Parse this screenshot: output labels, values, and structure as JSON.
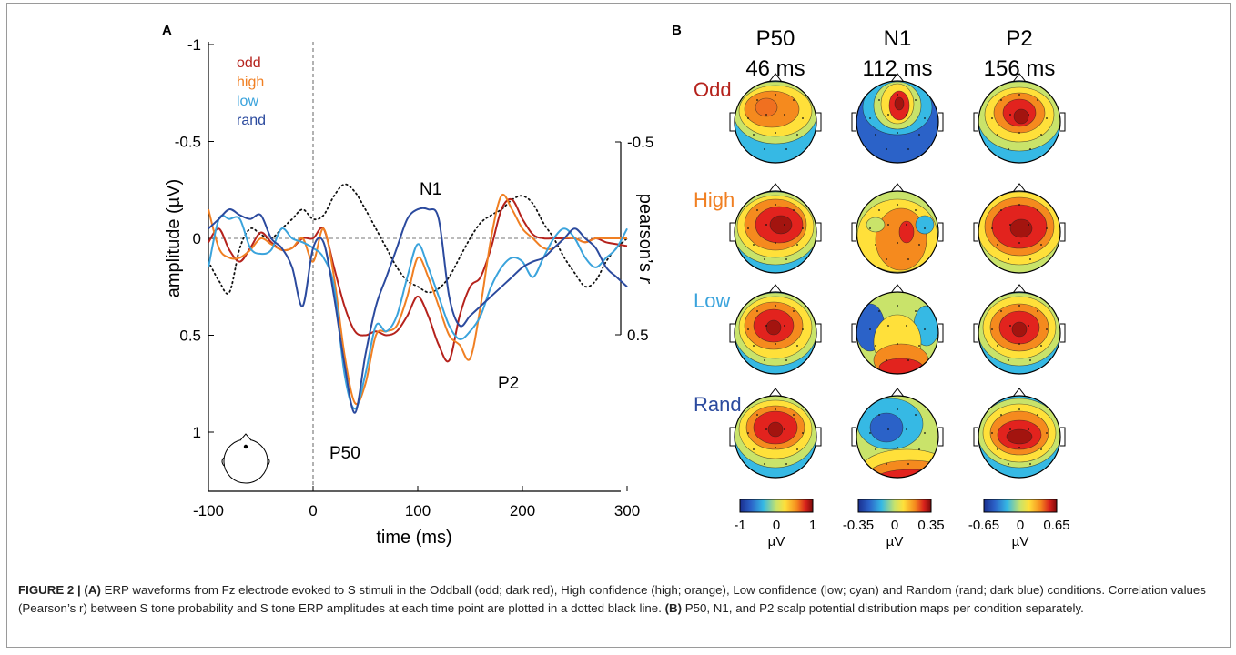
{
  "panel_a": {
    "letter": "A",
    "ylabel": "amplitude (µV)",
    "xlabel": "time (ms)",
    "y2label_text": "pearson’s ",
    "y2label_r": "r",
    "x_ticks": [
      "-100",
      "0",
      "100",
      "200",
      "300"
    ],
    "y_ticks": [
      "-1",
      "-0.5",
      "0",
      "0.5",
      "1"
    ],
    "r_ticks": [
      "-0.5",
      "0.5"
    ],
    "legend": [
      {
        "label": "odd",
        "color": "#b5221c"
      },
      {
        "label": "high",
        "color": "#f07f22"
      },
      {
        "label": "low",
        "color": "#3aa3dc"
      },
      {
        "label": "rand",
        "color": "#2b4a9e"
      }
    ],
    "peaks": {
      "p50": "P50",
      "n1": "N1",
      "p2": "P2"
    },
    "electrode_icon": "head-electrode-icon"
  },
  "chart_data": {
    "type": "line",
    "xlabel": "time (ms)",
    "ylabel": "amplitude (µV)",
    "xlim": [
      -100,
      300
    ],
    "ylim": [
      -1,
      1.25
    ],
    "y_inverted": true,
    "grid": false,
    "legend_placement": "top-left",
    "annotations": [
      "P50",
      "N1",
      "P2"
    ],
    "secondary_y": {
      "label": "pearson’s r",
      "ticks": [
        -0.5,
        0.5
      ],
      "range": [
        -0.5,
        0.5
      ]
    },
    "x": [
      -100,
      -90,
      -80,
      -70,
      -60,
      -50,
      -40,
      -30,
      -20,
      -10,
      0,
      10,
      20,
      30,
      40,
      50,
      60,
      70,
      80,
      90,
      100,
      110,
      120,
      130,
      140,
      150,
      160,
      170,
      180,
      190,
      200,
      210,
      220,
      230,
      240,
      250,
      260,
      270,
      280,
      290,
      300
    ],
    "series": [
      {
        "name": "odd",
        "color": "#b5221c",
        "values": [
          0.02,
          -0.05,
          0.06,
          0.12,
          0.05,
          -0.03,
          0.02,
          0.06,
          0.05,
          0.0,
          0.0,
          -0.05,
          0.15,
          0.35,
          0.48,
          0.5,
          0.48,
          0.5,
          0.48,
          0.4,
          0.3,
          0.4,
          0.55,
          0.63,
          0.4,
          0.25,
          0.2,
          0.05,
          -0.15,
          -0.2,
          -0.1,
          -0.02,
          0.0,
          0.0,
          0.0,
          0.0,
          0.02,
          0.0,
          0.02,
          0.03,
          0.04
        ]
      },
      {
        "name": "high",
        "color": "#f07f22",
        "values": [
          -0.15,
          0.05,
          0.1,
          0.1,
          0.06,
          0.0,
          0.03,
          0.06,
          0.05,
          0.0,
          0.12,
          -0.05,
          0.2,
          0.6,
          0.85,
          0.75,
          0.5,
          0.48,
          0.45,
          0.3,
          0.1,
          0.2,
          0.35,
          0.5,
          0.55,
          0.62,
          0.35,
          0.0,
          -0.22,
          -0.15,
          -0.05,
          0.0,
          0.05,
          0.05,
          0.0,
          0.0,
          0.02,
          0.0,
          0.0,
          0.0,
          0.0
        ]
      },
      {
        "name": "low",
        "color": "#3aa3dc",
        "values": [
          0.15,
          -0.1,
          -0.1,
          -0.1,
          0.05,
          0.08,
          0.06,
          -0.05,
          0.0,
          0.02,
          0.05,
          0.1,
          0.25,
          0.7,
          0.88,
          0.7,
          0.45,
          0.48,
          0.4,
          0.2,
          0.03,
          0.15,
          0.3,
          0.45,
          0.52,
          0.48,
          0.4,
          0.25,
          0.15,
          0.1,
          0.12,
          0.2,
          0.1,
          0.0,
          -0.05,
          0.0,
          0.1,
          0.15,
          0.1,
          0.05,
          -0.05
        ]
      },
      {
        "name": "rand",
        "color": "#2b4a9e",
        "values": [
          -0.05,
          -0.1,
          -0.15,
          -0.12,
          -0.1,
          -0.12,
          0.0,
          0.05,
          0.15,
          0.35,
          0.05,
          0.02,
          0.3,
          0.65,
          0.9,
          0.6,
          0.35,
          0.2,
          0.05,
          -0.1,
          -0.15,
          -0.15,
          -0.1,
          0.3,
          0.45,
          0.4,
          0.35,
          0.3,
          0.25,
          0.2,
          0.15,
          0.12,
          0.1,
          0.05,
          0.0,
          -0.05,
          0.0,
          0.05,
          0.15,
          0.2,
          0.25
        ]
      }
    ],
    "correlation": {
      "name": "pearson’s r",
      "style": "dotted",
      "color": "#111111",
      "values": [
        0.12,
        0.22,
        0.28,
        0.05,
        -0.05,
        -0.02,
        0.0,
        -0.05,
        -0.1,
        -0.15,
        -0.1,
        -0.12,
        -0.22,
        -0.28,
        -0.24,
        -0.15,
        -0.05,
        0.05,
        0.15,
        0.22,
        0.25,
        0.28,
        0.26,
        0.2,
        0.1,
        0.0,
        -0.08,
        -0.12,
        -0.15,
        -0.2,
        -0.22,
        -0.18,
        -0.08,
        0.0,
        0.1,
        0.18,
        0.25,
        0.22,
        0.12,
        0.05,
        0.0
      ]
    }
  },
  "panel_b": {
    "letter": "B",
    "columns": [
      {
        "name": "P50",
        "time": "46 ms"
      },
      {
        "name": "N1",
        "time": "112 ms"
      },
      {
        "name": "P2",
        "time": "156 ms"
      }
    ],
    "rows": [
      {
        "label": "Odd",
        "color": "#b5221c"
      },
      {
        "label": "High",
        "color": "#f07f22"
      },
      {
        "label": "Low",
        "color": "#3aa3dc"
      },
      {
        "label": "Rand",
        "color": "#2b4a9e"
      }
    ],
    "colorbars": [
      {
        "min": "-1",
        "mid": "0",
        "max": "1",
        "unit": "µV"
      },
      {
        "min": "-0.35",
        "mid": "0",
        "max": "0.35",
        "unit": "µV"
      },
      {
        "min": "-0.65",
        "mid": "0",
        "max": "0.65",
        "unit": "µV"
      }
    ]
  },
  "caption": {
    "lead": "FIGURE 2 | (A)",
    "text1": " ERP waveforms from Fz electrode evoked to S stimuli in the Oddball (odd; dark red), High confidence (high; orange), Low confidence (low; cyan) and Random (rand; dark blue) conditions. Correlation values (Pearson’s r) between S tone probability and S tone ERP amplitudes at each time point are plotted in a dotted black line. ",
    "b_label": "(B)",
    "text2": " P50, N1, and P2 scalp potential distribution maps per condition separately."
  }
}
